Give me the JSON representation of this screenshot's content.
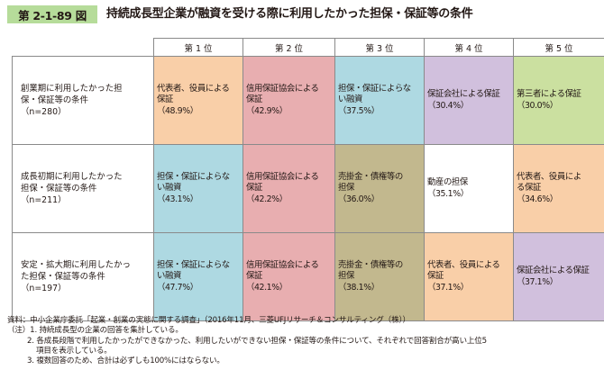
{
  "figure_number": "第 2-1-89 図",
  "title": "持続成長型企業が融資を受ける際に利用したかった担保・保証等の条件",
  "colors": {
    "badge": "#b6dc9a",
    "orange": "#f9cfa8",
    "pink": "#e8aeb0",
    "blue": "#aed9e2",
    "purple": "#d1c0dd",
    "green": "#cbe0a0",
    "olive": "#c2b88e",
    "white": "#ffffff"
  },
  "columns": [
    "第 1 位",
    "第 2 位",
    "第 3 位",
    "第 4 位",
    "第 5 位"
  ],
  "rows": [
    {
      "label1": "創業期に利用したかった担",
      "label2": "保・保証等の条件",
      "label3": "（n=280）",
      "cells": [
        {
          "l1": "代表者、役員による",
          "l2": "保証",
          "p": "（48.9%）",
          "color": "orange"
        },
        {
          "l1": "信用保証協会による",
          "l2": "保証",
          "p": "（42.9%）",
          "color": "pink"
        },
        {
          "l1": "担保・保証によらな",
          "l2": "い融資",
          "p": "（37.5%）",
          "color": "blue"
        },
        {
          "l1": "保証会社による保証",
          "l2": "",
          "p": "（30.4%）",
          "color": "purple"
        },
        {
          "l1": "第三者による保証",
          "l2": "",
          "p": "（30.0%）",
          "color": "green"
        }
      ]
    },
    {
      "label1": "成長初期に利用したかった",
      "label2": "担保・保証等の条件",
      "label3": "（n=211）",
      "cells": [
        {
          "l1": "担保・保証によらな",
          "l2": "い融資",
          "p": "（43.1%）",
          "color": "blue"
        },
        {
          "l1": "信用保証協会による",
          "l2": "保証",
          "p": "（42.2%）",
          "color": "pink"
        },
        {
          "l1": "売掛金・債権等の",
          "l2": "担保",
          "p": "（36.0%）",
          "color": "olive"
        },
        {
          "l1": "動産の担保",
          "l2": "",
          "p": "（35.1%）",
          "color": "white"
        },
        {
          "l1": "代表者、役員によ",
          "l2": "る保証",
          "p": "（34.6%）",
          "color": "orange"
        }
      ]
    },
    {
      "label1": "安定・拡大期に利用したかっ",
      "label2": "た担保・保証等の条件",
      "label3": "（n=197）",
      "cells": [
        {
          "l1": "担保・保証によらな",
          "l2": "い融資",
          "p": "（47.7%）",
          "color": "blue"
        },
        {
          "l1": "信用保証協会による",
          "l2": "保証",
          "p": "（42.1%）",
          "color": "pink"
        },
        {
          "l1": "売掛金・債権等の",
          "l2": "担保",
          "p": "（38.1%）",
          "color": "olive"
        },
        {
          "l1": "代表者、役員による",
          "l2": "保証",
          "p": "（37.1%）",
          "color": "orange"
        },
        {
          "l1": "保証会社による保証",
          "l2": "",
          "p": "（37.1%）",
          "color": "purple"
        }
      ]
    }
  ],
  "notes": {
    "source": "資料：中小企業庁委託「起業・創業の実態に関する調査」（2016年11月、三菱UFJリサーチ＆コンサルティング（株））",
    "note1": "（注）1. 持続成長型の企業の回答を集計している。",
    "note2a": "2. 各成長段階で利用したかったができなかった、利用したいができない担保・保証等の条件について、それぞれで回答割合が高い上位5",
    "note2b": "項目を表示している。",
    "note3": "3. 複数回答のため、合計は必ずしも100%にはならない。"
  }
}
